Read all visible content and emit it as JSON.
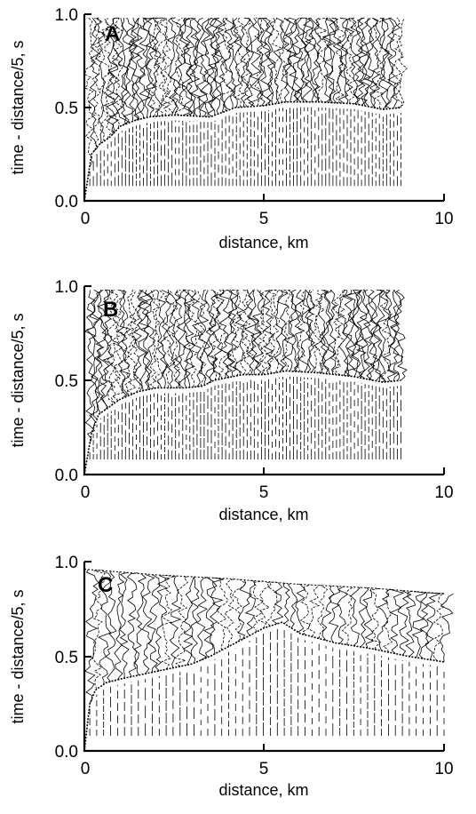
{
  "colors": {
    "background": "#ffffff",
    "ink": "#000000"
  },
  "chart_data": [
    {
      "type": "line",
      "panel_label": "A",
      "xlabel": "distance, km",
      "ylabel": "time - distance/5, s",
      "xlim": [
        0,
        10
      ],
      "ylim": [
        0.0,
        1.0
      ],
      "x_ticks": [
        "0",
        "5",
        "10"
      ],
      "y_ticks": [
        "0.0",
        "0.5",
        "1.0"
      ],
      "grid": false,
      "trace_extent_km": [
        0.0,
        8.8
      ],
      "first_arrival": {
        "x": [
          0.0,
          0.2,
          0.4,
          0.7,
          1.0,
          1.4,
          1.8,
          2.5,
          3.5,
          4.2,
          5.0,
          5.6,
          6.5,
          7.5,
          8.3,
          8.8
        ],
        "y": [
          0.0,
          0.25,
          0.3,
          0.34,
          0.4,
          0.43,
          0.45,
          0.46,
          0.45,
          0.5,
          0.51,
          0.53,
          0.53,
          0.52,
          0.49,
          0.5
        ]
      }
    },
    {
      "type": "line",
      "panel_label": "B",
      "xlabel": "distance, km",
      "ylabel": "time - distance/5, s",
      "xlim": [
        0,
        10
      ],
      "ylim": [
        0.0,
        1.0
      ],
      "x_ticks": [
        "0",
        "5",
        "10"
      ],
      "y_ticks": [
        "0.0",
        "0.5",
        "1.0"
      ],
      "grid": false,
      "trace_extent_km": [
        0.0,
        8.8
      ],
      "first_arrival": {
        "x": [
          0.0,
          0.2,
          0.4,
          0.7,
          1.0,
          1.5,
          2.0,
          2.8,
          3.3,
          3.6,
          4.4,
          5.0,
          5.6,
          6.5,
          7.5,
          8.3,
          8.8
        ],
        "y": [
          0.0,
          0.22,
          0.32,
          0.36,
          0.4,
          0.44,
          0.46,
          0.46,
          0.47,
          0.5,
          0.53,
          0.53,
          0.55,
          0.54,
          0.52,
          0.49,
          0.5
        ]
      }
    },
    {
      "type": "line",
      "panel_label": "C",
      "xlabel": "distance, km",
      "ylabel": "time - distance/5, s",
      "xlim": [
        0,
        10
      ],
      "ylim": [
        0.0,
        1.0
      ],
      "x_ticks": [
        "0",
        "5",
        "10"
      ],
      "y_ticks": [
        "0.0",
        "0.5",
        "1.0"
      ],
      "grid": false,
      "trace_extent_km": [
        0.0,
        10.0
      ],
      "first_arrival": {
        "x": [
          0.0,
          0.15,
          0.3,
          0.6,
          1.0,
          1.5,
          2.0,
          2.5,
          3.0,
          3.5,
          4.0,
          4.5,
          5.0,
          5.5,
          6.0,
          7.0,
          8.0,
          9.0,
          10.0
        ],
        "y": [
          0.0,
          0.25,
          0.32,
          0.36,
          0.38,
          0.4,
          0.42,
          0.44,
          0.46,
          0.5,
          0.55,
          0.6,
          0.65,
          0.68,
          0.62,
          0.57,
          0.54,
          0.5,
          0.47
        ]
      },
      "upper_front": {
        "x": [
          0.0,
          2.0,
          4.0,
          6.0,
          8.0,
          10.0
        ],
        "y": [
          0.96,
          0.93,
          0.91,
          0.88,
          0.86,
          0.83
        ]
      }
    }
  ]
}
